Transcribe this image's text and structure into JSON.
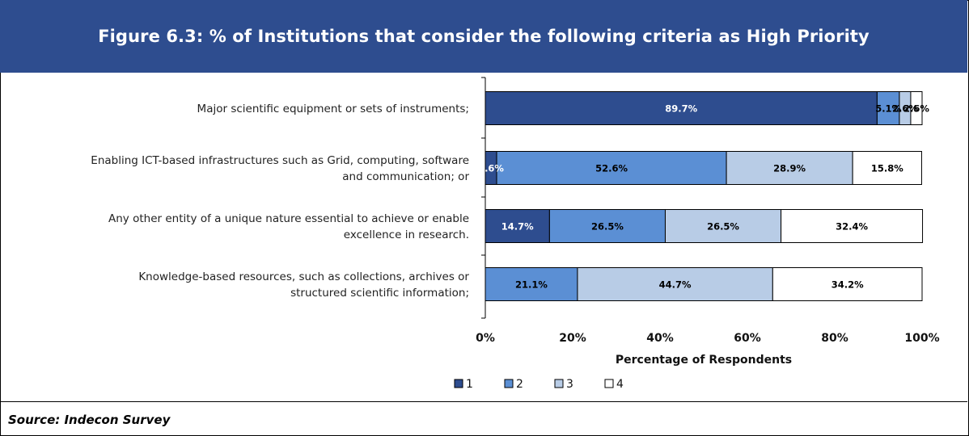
{
  "title": "Figure 6.3: % of Institutions that consider the following criteria as High Priority",
  "source": "Source: Indecon Survey",
  "chart_data": {
    "type": "bar",
    "orientation": "horizontal",
    "stacked": true,
    "categories": [
      [
        "Major scientific equipment or sets of instruments;"
      ],
      [
        "Enabling ICT-based infrastructures such as Grid, computing, software",
        "and communication; or"
      ],
      [
        "Any other entity of a unique nature essential to achieve or enable",
        "excellence in research."
      ],
      [
        "Knowledge-based resources, such as collections, archives or",
        "structured scientific information;"
      ]
    ],
    "series": [
      {
        "name": "1",
        "color": "#2e4d8f",
        "label_color": "#ffffff",
        "values": [
          89.7,
          2.6,
          14.7,
          0
        ]
      },
      {
        "name": "2",
        "color": "#5b8fd4",
        "label_color": "#000000",
        "values": [
          5.1,
          52.6,
          26.5,
          21.1
        ]
      },
      {
        "name": "3",
        "color": "#b8cce6",
        "label_color": "#000000",
        "values": [
          2.6,
          28.9,
          26.5,
          44.7
        ]
      },
      {
        "name": "4",
        "color": "#ffffff",
        "label_color": "#000000",
        "values": [
          2.6,
          15.8,
          32.4,
          34.2
        ]
      }
    ],
    "data_labels": [
      [
        "89.7%",
        "5.1%",
        "2.6%",
        "2.6%"
      ],
      [
        "2.6%",
        "52.6%",
        "28.9%",
        "15.8%"
      ],
      [
        "14.7%",
        "26.5%",
        "26.5%",
        "32.4%"
      ],
      [
        "",
        "21.1%",
        "44.7%",
        "34.2%"
      ]
    ],
    "xlabel": "Percentage of Respondents",
    "xlim": [
      0,
      100
    ],
    "xticks": [
      "0%",
      "20%",
      "40%",
      "60%",
      "80%",
      "100%"
    ],
    "legend_position": "bottom",
    "grid": false
  }
}
